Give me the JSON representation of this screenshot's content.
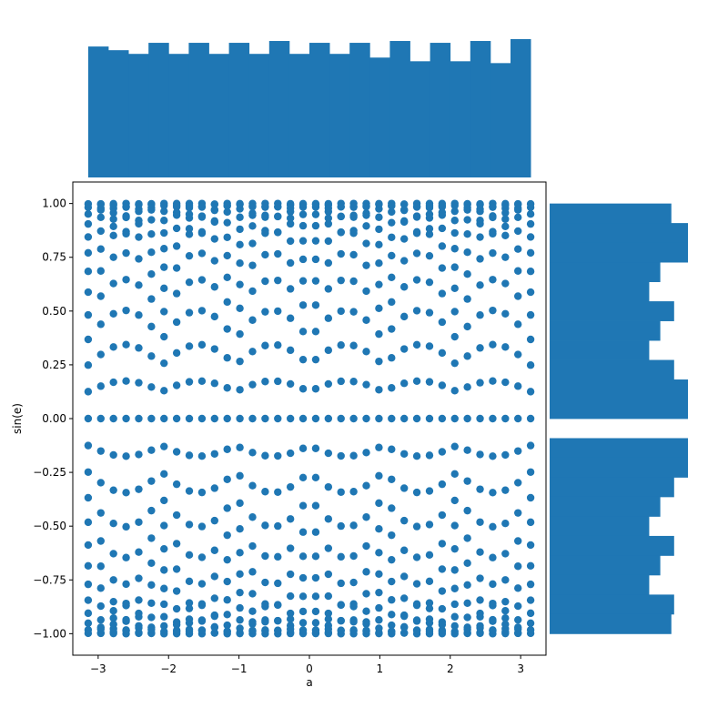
{
  "chart_data": [
    {
      "type": "scatter",
      "xlabel": "a",
      "ylabel": "sin(e)",
      "xlim": [
        -3.36,
        3.36
      ],
      "ylim": [
        -1.1,
        1.1
      ],
      "xticks": [
        -3,
        -2,
        -1,
        0,
        1,
        2,
        3
      ],
      "xtick_labels": [
        "−3",
        "−2",
        "−1",
        "0",
        "1",
        "2",
        "3"
      ],
      "yticks": [
        -1.0,
        -0.75,
        -0.5,
        -0.25,
        0.0,
        0.25,
        0.5,
        0.75,
        1.0
      ],
      "ytick_labels": [
        "−1.00",
        "−0.75",
        "−0.50",
        "−0.25",
        "0.00",
        "0.25",
        "0.50",
        "0.75",
        "1.00"
      ],
      "grid": false,
      "color": "#1f77b4",
      "x_range": [
        -3.1416,
        3.1416
      ],
      "x_count": 36,
      "e_values": [
        0,
        0.1257,
        0.2513,
        0.377,
        0.5027,
        0.6283,
        0.754,
        0.8796,
        1.0053,
        1.131,
        1.2566,
        1.3823,
        1.508
      ],
      "y_formula": "sin(sign(e) * (|e| + 0.6 * |sin(3 * a)| * |e| / 1.508))"
    },
    {
      "type": "histogram",
      "orientation": "vertical",
      "axis": "x",
      "bin_range": [
        -3.1416,
        3.1416
      ],
      "counts": [
        71,
        69,
        67,
        73,
        67,
        73,
        67,
        73,
        67,
        74,
        67,
        73,
        67,
        73,
        65,
        74,
        63,
        73,
        63,
        74,
        62,
        75
      ],
      "max_count": 75,
      "color": "#1f77b4"
    },
    {
      "type": "histogram",
      "orientation": "horizontal",
      "axis": "y",
      "bin_range": [
        -1.0,
        1.0
      ],
      "counts": [
        44,
        50,
        50,
        40,
        36,
        45,
        40,
        36,
        45,
        50,
        50,
        0,
        50,
        50,
        45,
        40,
        36,
        45,
        40,
        36,
        45,
        44
      ],
      "max_count": 50,
      "color": "#1f77b4"
    }
  ]
}
